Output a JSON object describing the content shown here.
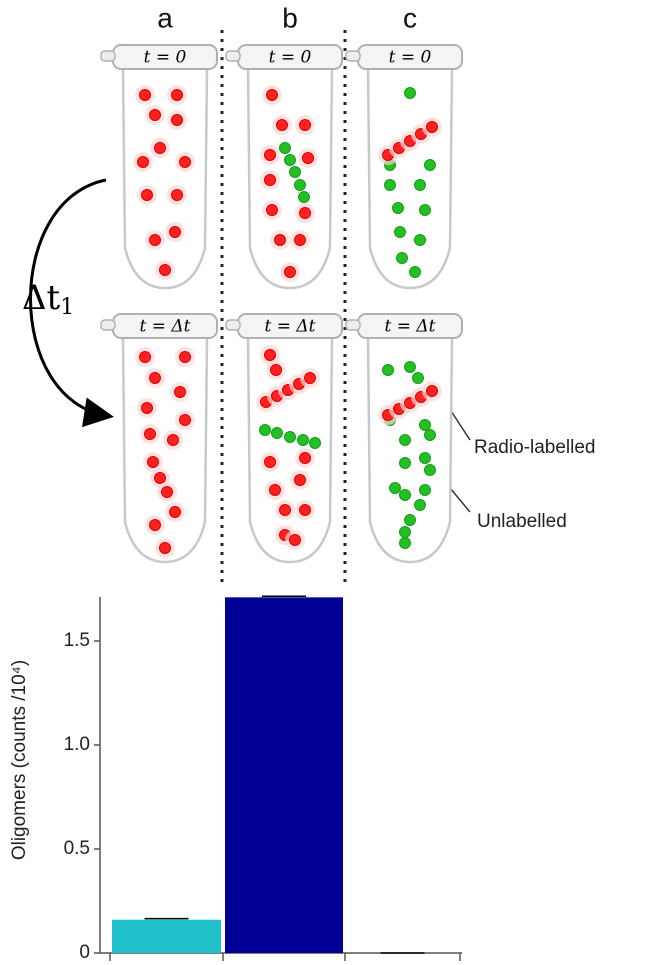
{
  "chart_data": {
    "type": "bar",
    "categories": [
      "a",
      "b",
      "c"
    ],
    "values": [
      0.16,
      1.71,
      0.0
    ],
    "errors": [
      0.005,
      0.005,
      0.0
    ],
    "colors": [
      "#20c0c8",
      "#000096",
      "#ffffff"
    ],
    "ylabel": "Oligomers (counts /10⁴)",
    "ylim": [
      0,
      1.75
    ],
    "yticks": [
      0,
      0.5,
      {
        "value": 1,
        "label": "1.0"
      },
      1.5
    ]
  },
  "diagram": {
    "tube_labels_top": [
      "t = 0",
      "t = 0",
      "t = 0"
    ],
    "tube_labels_bottom": [
      "t = Δt",
      "t = Δt",
      "t = Δt"
    ],
    "interval": "Δt",
    "interval_subscript": "1",
    "annotations": [
      "Radio-labelled",
      "Unlabelled"
    ]
  }
}
